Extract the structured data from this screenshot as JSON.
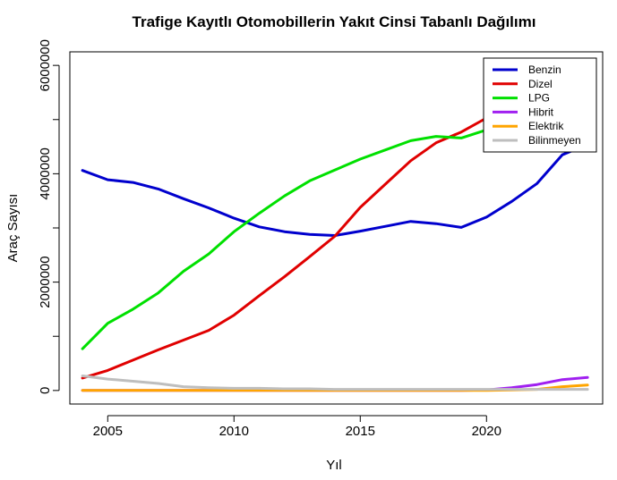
{
  "chart_data": {
    "type": "line",
    "title": "Trafige Kayıtlı Otomobillerin Yakıt Cinsi Tabanlı Dağılımı",
    "xlabel": "Yıl",
    "ylabel": "Araç Sayısı",
    "xlim": [
      2003.5,
      2024.6
    ],
    "ylim": [
      -250000,
      6250000
    ],
    "xticks": [
      2005,
      2010,
      2015,
      2020
    ],
    "yticks": [
      0,
      1000000,
      2000000,
      3000000,
      4000000,
      5000000,
      6000000
    ],
    "ytick_labels": [
      "0",
      "",
      "2000000",
      "",
      "4000000",
      "",
      "6000000"
    ],
    "x": [
      2004,
      2005,
      2006,
      2007,
      2008,
      2009,
      2010,
      2011,
      2012,
      2013,
      2014,
      2015,
      2016,
      2017,
      2018,
      2019,
      2020,
      2021,
      2022,
      2023,
      2024
    ],
    "legend_position": "top-right",
    "grid": false,
    "series": [
      {
        "name": "Benzin",
        "color": "#0000CD",
        "values": [
          4060000,
          3890000,
          3840000,
          3720000,
          3540000,
          3370000,
          3180000,
          3020000,
          2930000,
          2880000,
          2860000,
          2940000,
          3030000,
          3120000,
          3080000,
          3010000,
          3200000,
          3490000,
          3820000,
          4350000,
          4540000
        ]
      },
      {
        "name": "Dizel",
        "color": "#E00000",
        "values": [
          230000,
          370000,
          560000,
          750000,
          930000,
          1110000,
          1390000,
          1750000,
          2100000,
          2470000,
          2850000,
          3380000,
          3810000,
          4240000,
          4570000,
          4770000,
          5030000,
          5200000,
          5380000,
          5520000,
          5600000
        ]
      },
      {
        "name": "LPG",
        "color": "#00E000",
        "values": [
          770000,
          1240000,
          1500000,
          1800000,
          2200000,
          2520000,
          2930000,
          3270000,
          3590000,
          3870000,
          4070000,
          4270000,
          4440000,
          4610000,
          4690000,
          4660000,
          4810000,
          4940000,
          5030000,
          5090000,
          5140000
        ]
      },
      {
        "name": "Hibrit",
        "color": "#A020F0",
        "values": [
          0,
          0,
          0,
          0,
          0,
          0,
          0,
          0,
          0,
          0,
          0,
          0,
          0,
          0,
          0,
          0,
          10000,
          50000,
          110000,
          200000,
          240000
        ]
      },
      {
        "name": "Elektrik",
        "color": "#FFA500",
        "values": [
          0,
          0,
          0,
          0,
          0,
          0,
          0,
          0,
          0,
          0,
          0,
          0,
          0,
          0,
          0,
          0,
          0,
          10000,
          20000,
          70000,
          100000
        ]
      },
      {
        "name": "Bilinmeyen",
        "color": "#BEBEBE",
        "values": [
          270000,
          210000,
          170000,
          130000,
          70000,
          50000,
          40000,
          40000,
          30000,
          30000,
          20000,
          20000,
          20000,
          20000,
          20000,
          20000,
          20000,
          20000,
          20000,
          20000,
          20000
        ]
      }
    ]
  }
}
